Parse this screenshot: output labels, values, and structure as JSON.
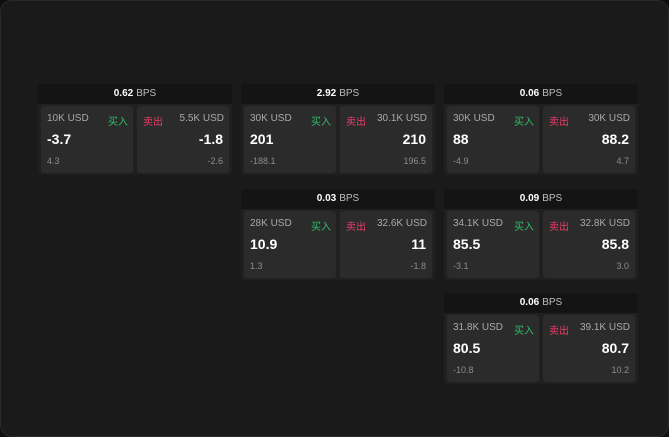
{
  "unit": "BPS",
  "buy_label": "买入",
  "sell_label": "卖出",
  "colors": {
    "buy": "#2fbd6a",
    "sell": "#ec3c6a"
  },
  "cards": [
    {
      "spread": "0.62",
      "bid": {
        "size": "10K USD",
        "price": "-3.7",
        "change": "4.3"
      },
      "ask": {
        "size": "5.5K USD",
        "price": "-1.8",
        "change": "-2.6"
      }
    },
    {
      "spread": "2.92",
      "bid": {
        "size": "30K USD",
        "price": "201",
        "change": "-188.1"
      },
      "ask": {
        "size": "30.1K USD",
        "price": "210",
        "change": "196.5"
      }
    },
    {
      "spread": "0.06",
      "bid": {
        "size": "30K USD",
        "price": "88",
        "change": "-4.9"
      },
      "ask": {
        "size": "30K USD",
        "price": "88.2",
        "change": "4.7"
      }
    },
    {
      "spread": "0.03",
      "bid": {
        "size": "28K USD",
        "price": "10.9",
        "change": "1.3"
      },
      "ask": {
        "size": "32.6K USD",
        "price": "11",
        "change": "-1.8"
      }
    },
    {
      "spread": "0.09",
      "bid": {
        "size": "34.1K USD",
        "price": "85.5",
        "change": "-3.1"
      },
      "ask": {
        "size": "32.8K USD",
        "price": "85.8",
        "change": "3.0"
      }
    },
    {
      "spread": "0.06",
      "bid": {
        "size": "31.8K USD",
        "price": "80.5",
        "change": "-10.8"
      },
      "ask": {
        "size": "39.1K USD",
        "price": "80.7",
        "change": "10.2"
      }
    }
  ]
}
